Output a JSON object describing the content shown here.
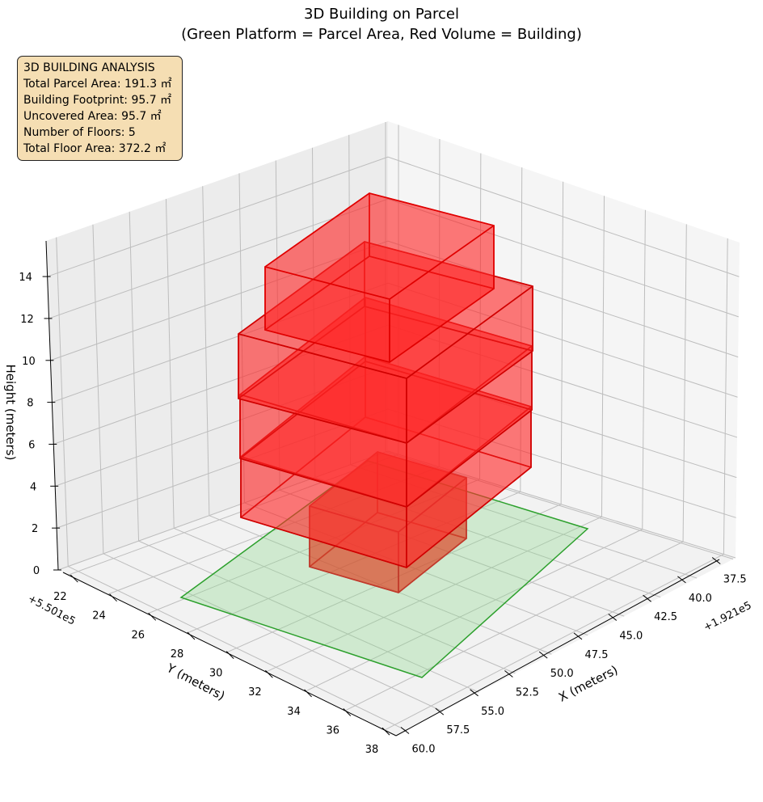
{
  "chart_data": {
    "type": "3d-bar",
    "title": "3D Building on Parcel",
    "subtitle": "(Green Platform = Parcel Area, Red Volume = Building)",
    "xlabel": "X (meters)",
    "ylabel": "Y (meters)",
    "zlabel": "Height (meters)",
    "x_offset": "+1.921e5",
    "y_offset": "+5.501e5",
    "x_ticks": [
      "37.5",
      "40.0",
      "42.5",
      "45.0",
      "47.5",
      "50.0",
      "52.5",
      "55.0",
      "57.5",
      "60.0"
    ],
    "y_ticks": [
      "22",
      "24",
      "26",
      "28",
      "30",
      "32",
      "34",
      "36",
      "38"
    ],
    "z_ticks": [
      "0",
      "2",
      "4",
      "6",
      "8",
      "10",
      "12",
      "14"
    ],
    "zlim": [
      0,
      15.7
    ],
    "grid": true,
    "parcel_color": "#2ca02c",
    "building_color": "#ff0000",
    "floors": 5
  },
  "info": {
    "heading": "3D BUILDING ANALYSIS",
    "lines": [
      "Total Parcel Area: 191.3 ㎡",
      "Building Footprint: 95.7 ㎡",
      "Uncovered Area: 95.7 ㎡",
      "Number of Floors: 5",
      "Total Floor Area: 372.2 ㎡"
    ]
  }
}
